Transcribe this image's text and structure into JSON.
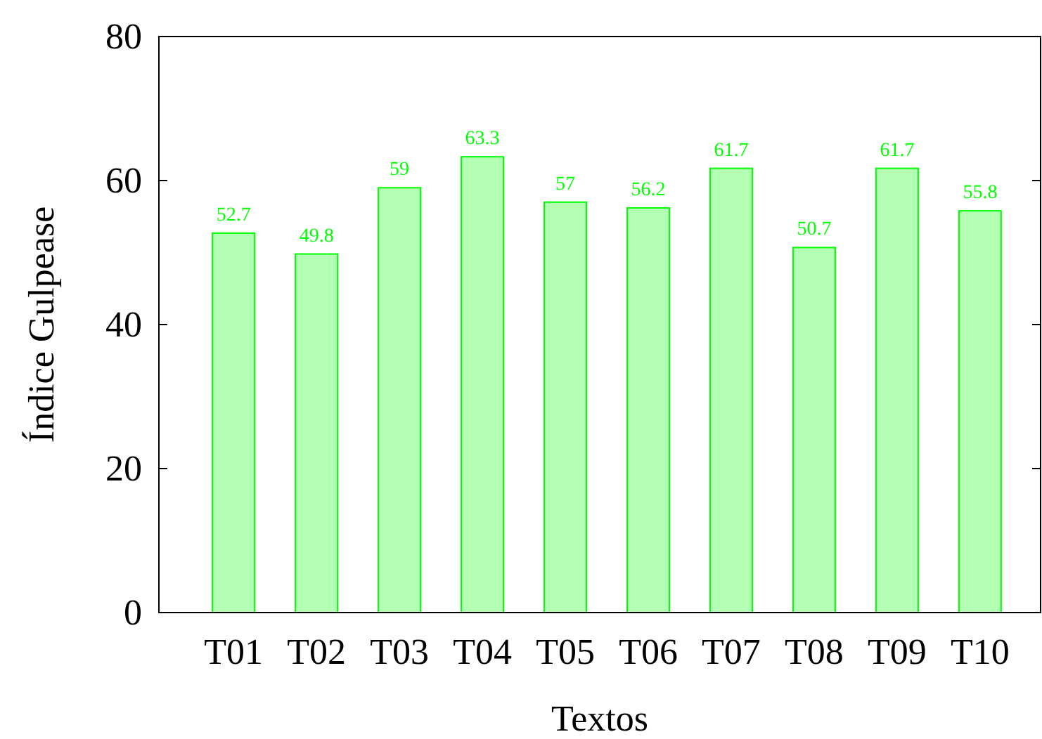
{
  "chart_data": {
    "type": "bar",
    "xlabel": "Textos",
    "ylabel": "Índice Gulpease",
    "categories": [
      "T01",
      "T02",
      "T03",
      "T04",
      "T05",
      "T06",
      "T07",
      "T08",
      "T09",
      "T10"
    ],
    "values": [
      52.7,
      49.8,
      59,
      63.3,
      57,
      56.2,
      61.7,
      50.7,
      61.7,
      55.8
    ],
    "color": "#b3ffb3",
    "ylim": [
      0,
      80
    ],
    "yticks": [
      0,
      20,
      40,
      60,
      80
    ],
    "data_labels": true,
    "grid": false
  }
}
